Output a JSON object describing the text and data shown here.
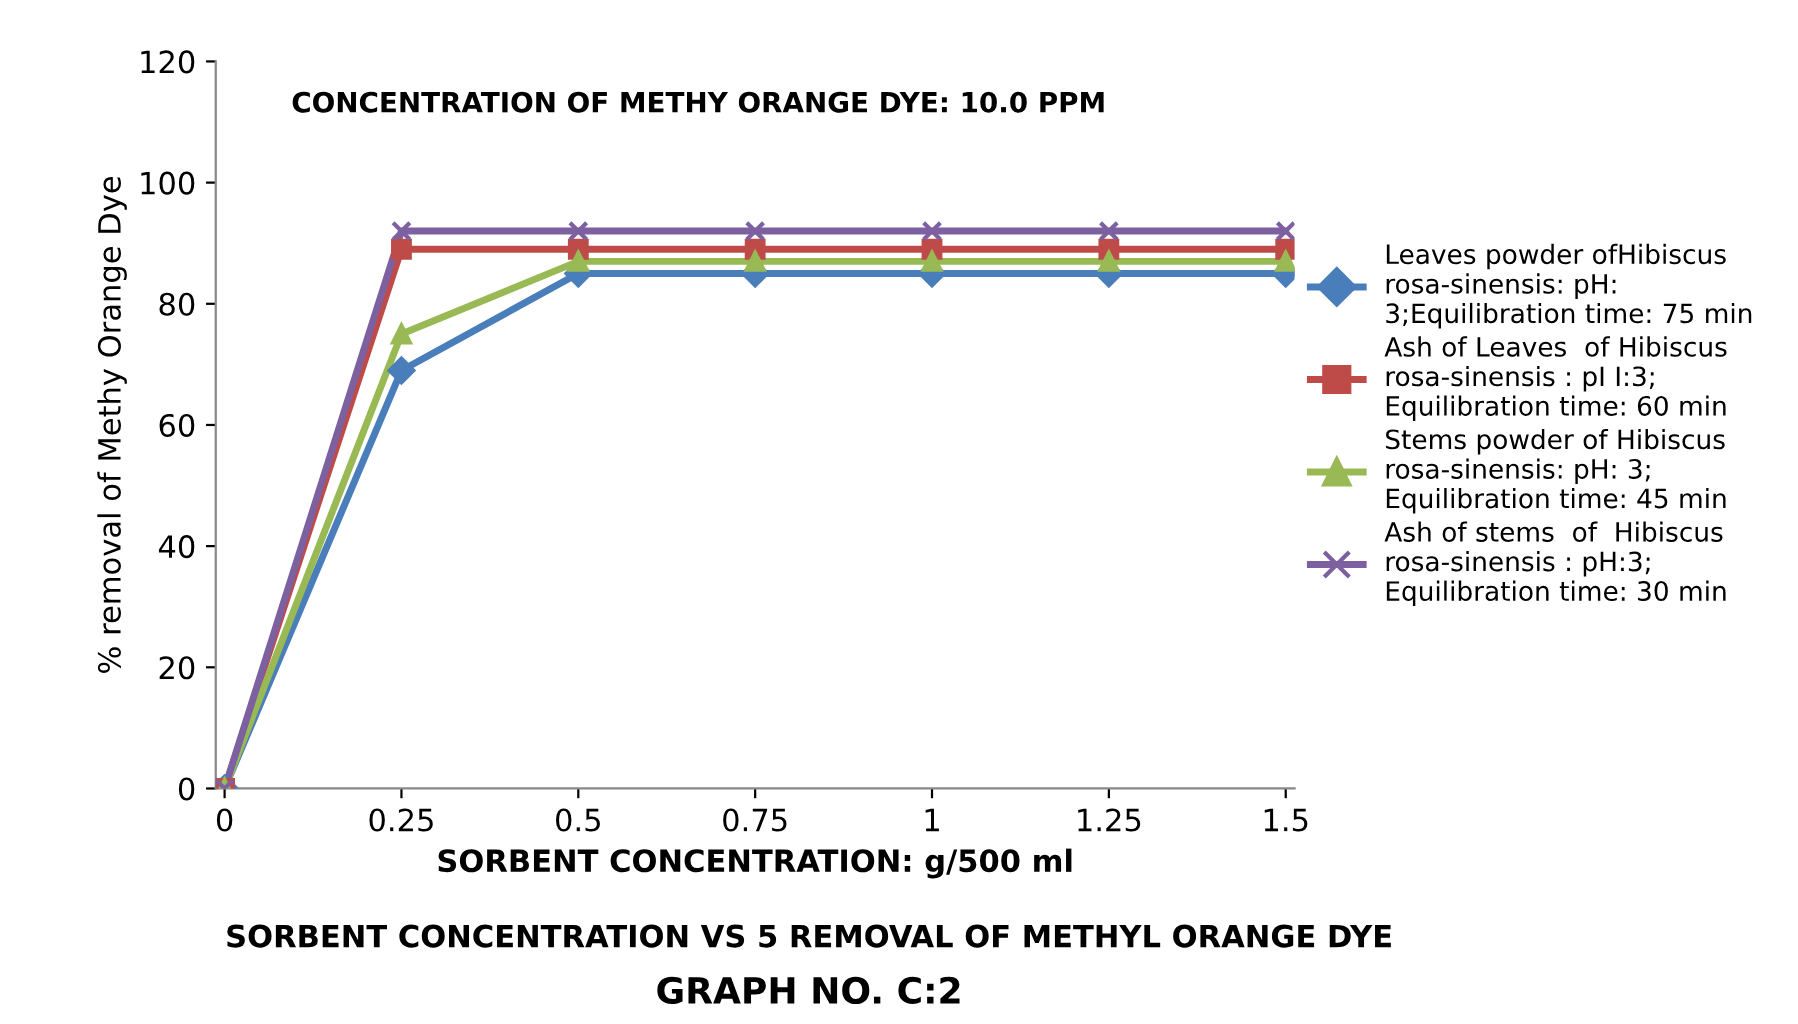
{
  "chart_data": {
    "type": "line",
    "title": "CONCENTRATION OF METHY ORANGE DYE: 10.0 PPM",
    "xlabel": "SORBENT CONCENTRATION: g/500 ml",
    "ylabel": "% removal of Methy Orange Dye",
    "categories": [
      "0",
      "0.25",
      "0.5",
      "0.75",
      "1",
      "1.25",
      "1.5"
    ],
    "series": [
      {
        "name": "Leaves powder ofHibiscus rosa-sinensis: pH: 3;Equilibration time: 75 min",
        "color": "#4a7ebb",
        "marker": "diamond",
        "values": [
          0,
          69,
          85,
          85,
          85,
          85,
          85
        ]
      },
      {
        "name": "Ash of Leaves  of Hibiscus rosa-sinensis : pI I:3; Equilibration time: 60 min",
        "color": "#be4b48",
        "marker": "square",
        "values": [
          0,
          89,
          89,
          89,
          89,
          89,
          89
        ]
      },
      {
        "name": "Stems powder of Hibiscus rosa-sinensis: pH: 3; Equilibration time: 45 min",
        "color": "#98b954",
        "marker": "triangle",
        "values": [
          0,
          75,
          87,
          87,
          87,
          87,
          87
        ]
      },
      {
        "name": "Ash of stems  of  Hibiscus rosa-sinensis : pH:3; Equilibration time: 30 min",
        "color": "#7d60a0",
        "marker": "cross",
        "values": [
          0,
          92,
          92,
          92,
          92,
          92,
          92
        ]
      }
    ],
    "ylim": [
      0,
      120
    ],
    "yticks": [
      0,
      20,
      40,
      60,
      80,
      100,
      120
    ],
    "grid": false,
    "legend": "right",
    "annotations": [
      "SORBENT CONCENTRATION VS 5 REMOVAL OF METHYL ORANGE DYE",
      "GRAPH NO. C:2"
    ]
  }
}
